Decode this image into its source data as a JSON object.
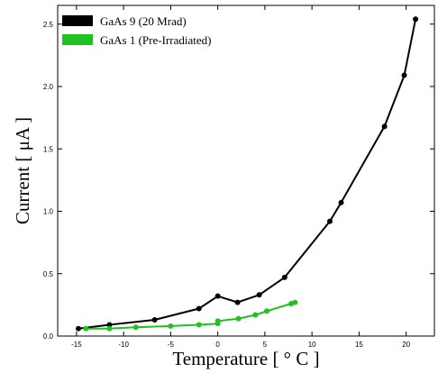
{
  "chart_data": {
    "type": "line",
    "xlabel": "Temperature [ ° C ]",
    "ylabel": "Current [ μA ]",
    "xlim": [
      -17,
      23
    ],
    "ylim": [
      0,
      2.65
    ],
    "xticks": [
      -15,
      -10,
      -5,
      0,
      5,
      10,
      15,
      20
    ],
    "yticks": [
      0.0,
      0.5,
      1.0,
      1.5,
      2.0,
      2.5
    ],
    "xtick_labels": [
      "-15",
      "-10",
      "-5",
      "0",
      "5",
      "10",
      "15",
      "20"
    ],
    "ytick_labels": [
      "0.0",
      "0.5",
      "1.0",
      "1.5",
      "2.0",
      "2.5"
    ],
    "grid": false,
    "legend_position": "top-left",
    "series": [
      {
        "name": "GaAs 9 (20 Mrad)",
        "color": "#000000",
        "x": [
          -14.8,
          -11.5,
          -6.7,
          -2.0,
          0.0,
          2.1,
          4.4,
          7.1,
          11.9,
          13.1,
          17.7,
          19.8,
          21.0
        ],
        "y": [
          0.06,
          0.09,
          0.13,
          0.22,
          0.32,
          0.27,
          0.33,
          0.47,
          0.92,
          1.07,
          1.68,
          2.09,
          2.54
        ]
      },
      {
        "name": "GaAs 1 (Pre-Irradiated)",
        "color": "#1fc21f",
        "x": [
          -14.0,
          -11.5,
          -8.7,
          -5.0,
          -2.0,
          0.0,
          0.0,
          2.2,
          4.0,
          5.2,
          7.8,
          8.2
        ],
        "y": [
          0.06,
          0.06,
          0.07,
          0.08,
          0.09,
          0.1,
          0.12,
          0.14,
          0.17,
          0.2,
          0.26,
          0.27
        ]
      }
    ]
  }
}
